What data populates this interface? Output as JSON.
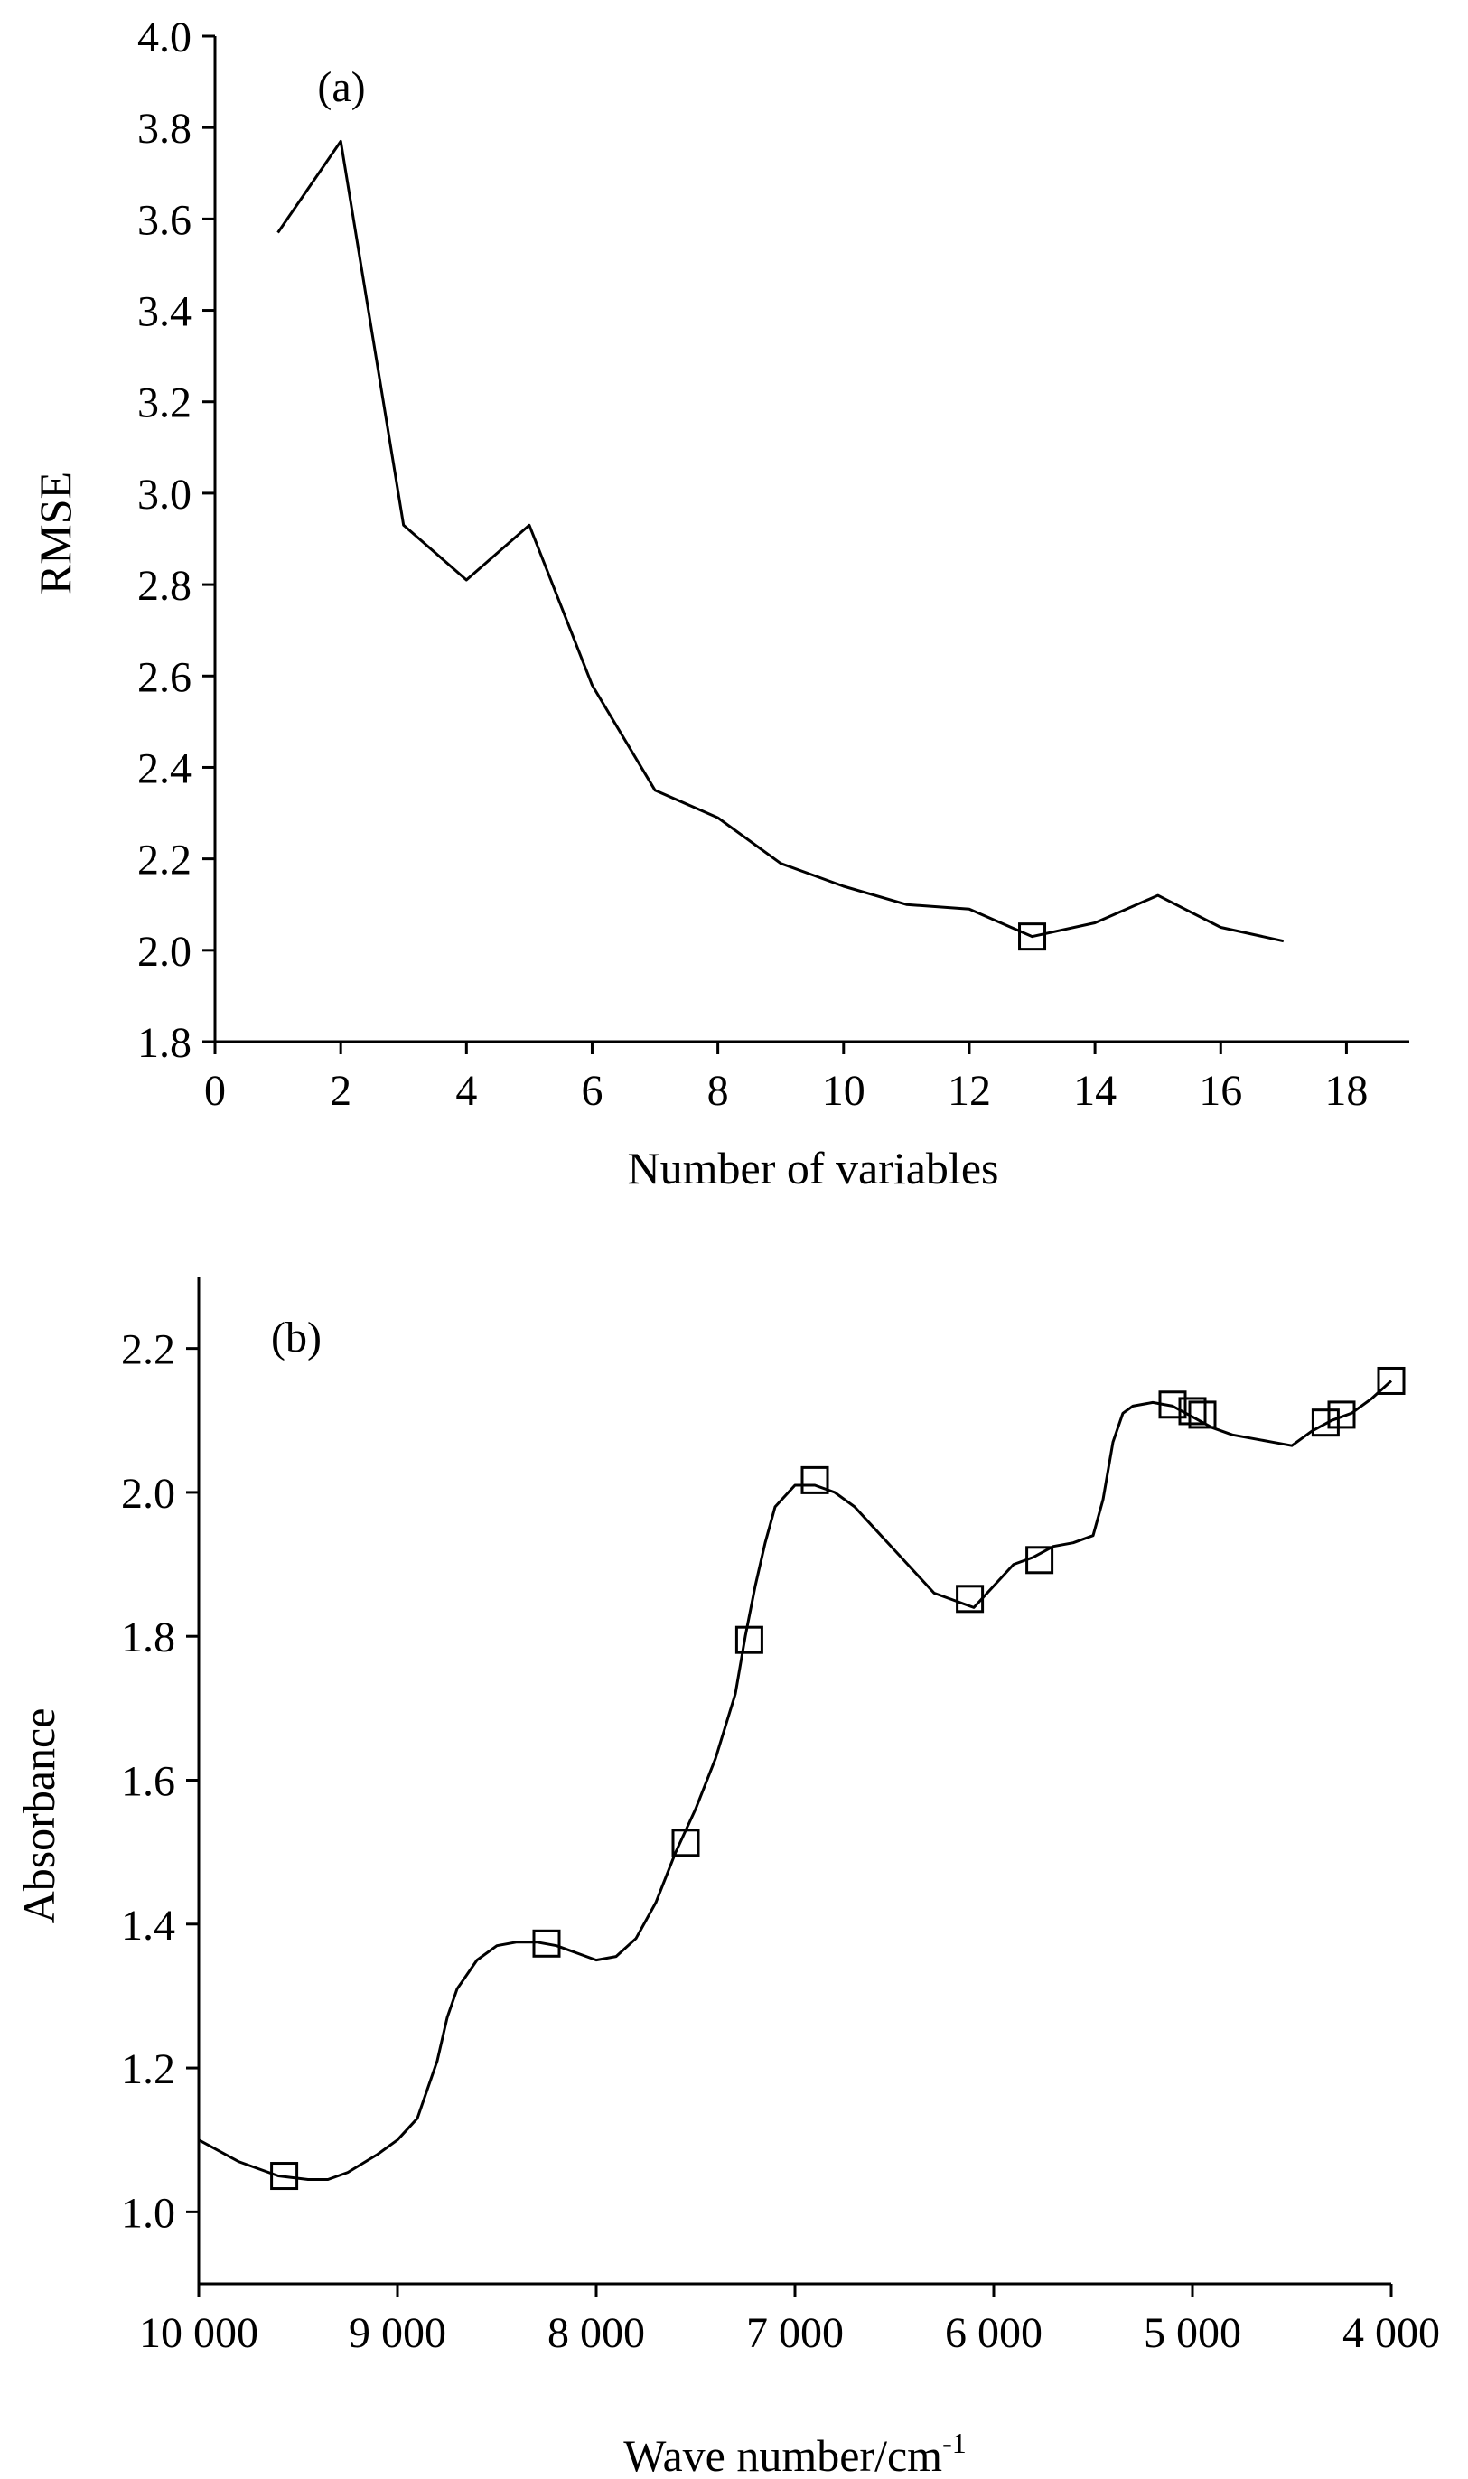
{
  "chart_data": [
    {
      "type": "line",
      "panel_label": "(a)",
      "xlabel": "Number of variables",
      "ylabel": "RMSE",
      "xlim": [
        0,
        19
      ],
      "ylim": [
        1.8,
        4.0
      ],
      "xticks": [
        "0",
        "2",
        "4",
        "6",
        "8",
        "10",
        "12",
        "14",
        "16",
        "18"
      ],
      "yticks": [
        "1.8",
        "2.0",
        "2.2",
        "2.4",
        "2.6",
        "2.8",
        "3.0",
        "3.2",
        "3.4",
        "3.6",
        "3.8",
        "4.0"
      ],
      "x": [
        1,
        2,
        3,
        4,
        5,
        6,
        7,
        8,
        9,
        10,
        11,
        12,
        13,
        14,
        15,
        16,
        17
      ],
      "y": [
        3.57,
        3.77,
        2.93,
        2.81,
        2.93,
        2.58,
        2.35,
        2.29,
        2.19,
        2.14,
        2.1,
        2.09,
        2.03,
        2.06,
        2.12,
        2.05,
        2.02
      ],
      "markers": [
        {
          "x": 13,
          "y": 2.03
        }
      ],
      "grid": false
    },
    {
      "type": "line",
      "panel_label": "(b)",
      "xlabel": "Wave number/cm",
      "xlabel_sup": "-1",
      "ylabel": "Absorbance",
      "x_reversed": true,
      "xlim": [
        10000,
        4000
      ],
      "ylim": [
        0.9,
        2.3
      ],
      "xticks": [
        "10 000",
        "9 000",
        "8 000",
        "7 000",
        "6 000",
        "5 000",
        "4 000"
      ],
      "yticks": [
        "1.0",
        "1.2",
        "1.4",
        "1.6",
        "1.8",
        "2.0",
        "2.2"
      ],
      "x": [
        10000,
        9800,
        9600,
        9450,
        9350,
        9250,
        9100,
        9000,
        8900,
        8800,
        8750,
        8700,
        8600,
        8500,
        8400,
        8300,
        8200,
        8100,
        8000,
        7900,
        7800,
        7700,
        7600,
        7500,
        7400,
        7300,
        7250,
        7200,
        7150,
        7100,
        7000,
        6900,
        6800,
        6700,
        6600,
        6500,
        6400,
        6300,
        6200,
        6100,
        6000,
        5900,
        5800,
        5700,
        5600,
        5500,
        5450,
        5400,
        5350,
        5300,
        5200,
        5100,
        5000,
        4900,
        4800,
        4700,
        4600,
        4500,
        4400,
        4300,
        4200,
        4100,
        4000
      ],
      "y": [
        1.1,
        1.07,
        1.05,
        1.045,
        1.045,
        1.055,
        1.08,
        1.1,
        1.13,
        1.21,
        1.27,
        1.31,
        1.35,
        1.37,
        1.375,
        1.375,
        1.37,
        1.36,
        1.35,
        1.355,
        1.38,
        1.43,
        1.5,
        1.56,
        1.63,
        1.72,
        1.8,
        1.87,
        1.93,
        1.98,
        2.01,
        2.01,
        2.0,
        1.98,
        1.95,
        1.92,
        1.89,
        1.86,
        1.85,
        1.84,
        1.87,
        1.9,
        1.91,
        1.925,
        1.93,
        1.94,
        1.99,
        2.07,
        2.11,
        2.12,
        2.125,
        2.12,
        2.105,
        2.09,
        2.08,
        2.075,
        2.07,
        2.065,
        2.085,
        2.1,
        2.11,
        2.13,
        2.155
      ],
      "markers": [
        {
          "x": 9570,
          "y": 1.05
        },
        {
          "x": 8250,
          "y": 1.373
        },
        {
          "x": 7550,
          "y": 1.513
        },
        {
          "x": 7230,
          "y": 1.795
        },
        {
          "x": 6900,
          "y": 2.017
        },
        {
          "x": 6120,
          "y": 1.852
        },
        {
          "x": 5770,
          "y": 1.906
        },
        {
          "x": 5100,
          "y": 2.122
        },
        {
          "x": 5000,
          "y": 2.113
        },
        {
          "x": 4950,
          "y": 2.108
        },
        {
          "x": 4330,
          "y": 2.097
        },
        {
          "x": 4250,
          "y": 2.108
        },
        {
          "x": 4000,
          "y": 2.155
        }
      ],
      "grid": false
    }
  ]
}
